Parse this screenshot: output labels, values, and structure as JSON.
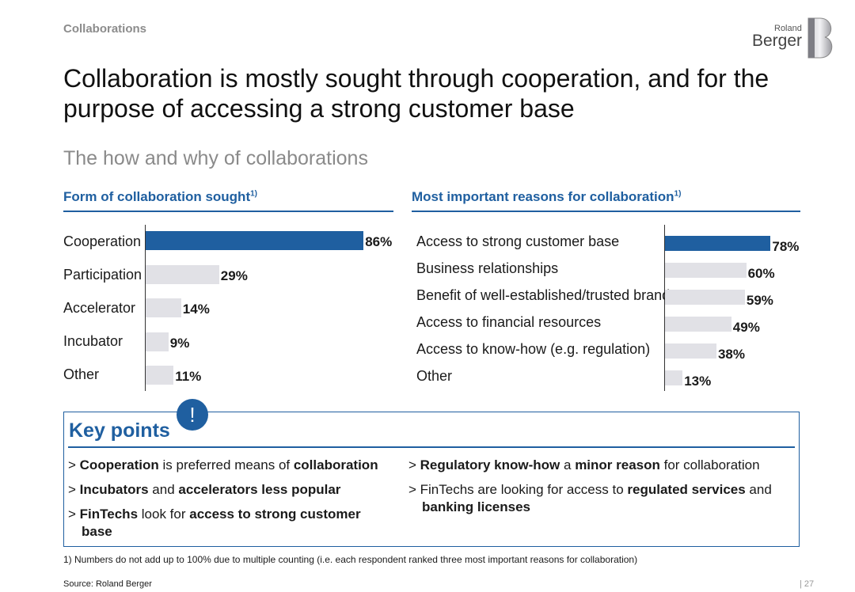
{
  "header": {
    "section": "Collaborations",
    "logo_small": "Roland",
    "logo_big": "Berger"
  },
  "title": "Collaboration is mostly sought through cooperation, and for the purpose of accessing a strong customer base",
  "subtitle": "The how and why of collaborations",
  "colors": {
    "accent": "#1f5fa0",
    "bar_gray": "#e1e1e6"
  },
  "chart_data": [
    {
      "type": "bar",
      "orientation": "horizontal",
      "title": "Form of collaboration sought",
      "title_sup": "1)",
      "categories": [
        "Cooperation",
        "Participation",
        "Accelerator",
        "Incubator",
        "Other"
      ],
      "values": [
        86,
        29,
        14,
        9,
        11
      ],
      "value_labels": [
        "86%",
        "29%",
        "14%",
        "9%",
        "11%"
      ],
      "unit": "%",
      "highlight_index": 0
    },
    {
      "type": "bar",
      "orientation": "horizontal",
      "title": "Most important reasons for collaboration",
      "title_sup": "1)",
      "categories": [
        "Access to strong customer base",
        "Business relationships",
        "Benefit of well-established/trusted brand",
        "Access to financial resources",
        "Access to know-how (e.g. regulation)",
        "Other"
      ],
      "values": [
        78,
        60,
        59,
        49,
        38,
        13
      ],
      "value_labels": [
        "78%",
        "60%",
        "59%",
        "49%",
        "38%",
        "13%"
      ],
      "unit": "%",
      "highlight_index": 0
    }
  ],
  "key_points": {
    "title": "Key points",
    "badge": "!",
    "left": [
      [
        {
          "t": "> "
        },
        {
          "t": "Cooperation",
          "b": true
        },
        {
          "t": " is preferred means of "
        },
        {
          "t": "collaboration",
          "b": true
        }
      ],
      [
        {
          "t": "> "
        },
        {
          "t": "Incubators",
          "b": true
        },
        {
          "t": " and "
        },
        {
          "t": "accelerators less popular",
          "b": true
        }
      ],
      [
        {
          "t": "> "
        },
        {
          "t": "FinTechs",
          "b": true
        },
        {
          "t": " look for "
        },
        {
          "t": "access to strong customer base",
          "b": true
        }
      ]
    ],
    "right": [
      [
        {
          "t": "> "
        },
        {
          "t": "Regulatory know-how",
          "b": true
        },
        {
          "t": " a "
        },
        {
          "t": "minor reason",
          "b": true
        },
        {
          "t": " for collaboration"
        }
      ],
      [
        {
          "t": "> FinTechs are looking for access to "
        },
        {
          "t": "regulated services",
          "b": true
        },
        {
          "t": " and "
        },
        {
          "t": "banking licenses",
          "b": true
        }
      ]
    ]
  },
  "footnote": "1) Numbers do not add up to 100% due to multiple counting (i.e. each respondent ranked three most important reasons for collaboration)",
  "source": "Source: Roland Berger",
  "page_number": "27"
}
